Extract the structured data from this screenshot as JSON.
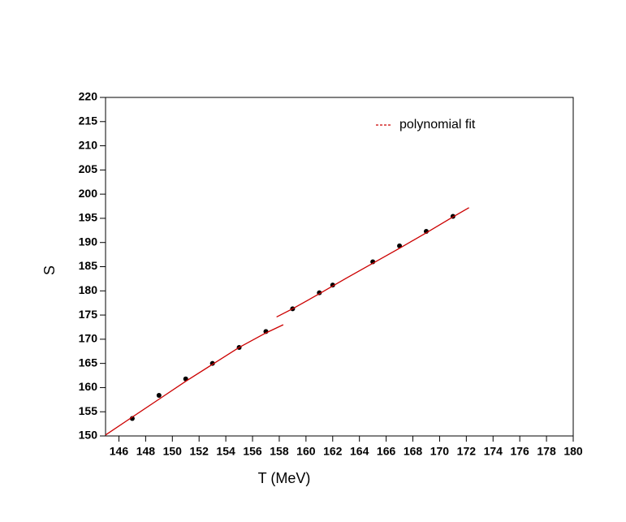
{
  "chart_data": {
    "type": "scatter",
    "x_label": "T (MeV)",
    "y_label": "S",
    "xlim": [
      145,
      180
    ],
    "ylim": [
      150,
      220
    ],
    "xticks": [
      146,
      148,
      150,
      152,
      154,
      156,
      158,
      160,
      162,
      164,
      166,
      168,
      170,
      172,
      174,
      176,
      178,
      180
    ],
    "yticks": [
      150,
      155,
      160,
      165,
      170,
      175,
      180,
      185,
      190,
      195,
      200,
      205,
      210,
      215,
      220
    ],
    "legend": "top-right",
    "series": [
      {
        "type": "scatter",
        "color": "#000000",
        "x": [
          147,
          149,
          151,
          153,
          155,
          157,
          159,
          161,
          162,
          165,
          167,
          169,
          171
        ],
        "values": [
          153.6,
          158.4,
          161.8,
          165,
          168.3,
          171.6,
          176.3,
          179.6,
          181.2,
          186,
          189.3,
          192.3,
          195.4
        ]
      },
      {
        "type": "line",
        "name": "polynomial fit",
        "color": "#cc0000",
        "x": [
          145,
          147,
          149,
          151,
          153,
          155,
          157,
          158.3,
          null,
          157.8,
          159,
          161,
          163,
          165,
          167,
          169,
          171,
          172.2
        ],
        "values": [
          150.2,
          153.9,
          157.6,
          161.3,
          164.8,
          168.3,
          171.3,
          173,
          null,
          174.6,
          176.3,
          179.4,
          182.6,
          185.7,
          188.8,
          192,
          195.3,
          197.2
        ]
      }
    ]
  }
}
